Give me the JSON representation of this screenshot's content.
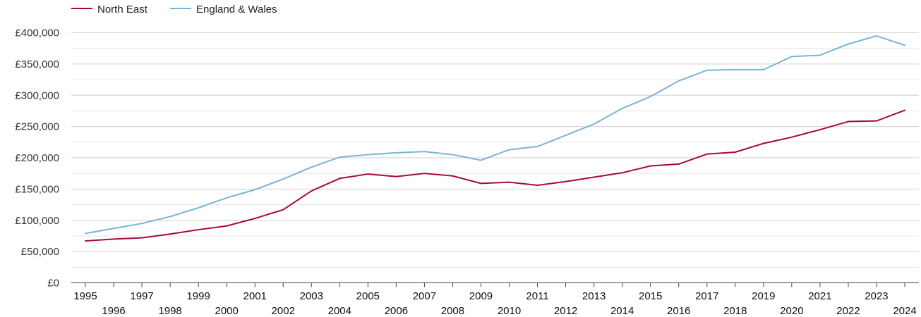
{
  "chart_data": {
    "type": "line",
    "title": "",
    "xlabel": "",
    "ylabel": "",
    "x": [
      1995,
      1996,
      1997,
      1998,
      1999,
      2000,
      2001,
      2002,
      2003,
      2004,
      2005,
      2006,
      2007,
      2008,
      2009,
      2010,
      2011,
      2012,
      2013,
      2014,
      2015,
      2016,
      2017,
      2018,
      2019,
      2020,
      2021,
      2022,
      2023,
      2024
    ],
    "x_tick_labels": [
      "1995",
      "1996",
      "1997",
      "1998",
      "1999",
      "2000",
      "2001",
      "2002",
      "2003",
      "2004",
      "2005",
      "2006",
      "2007",
      "2008",
      "2009",
      "2010",
      "2011",
      "2012",
      "2013",
      "2014",
      "2015",
      "2016",
      "2017",
      "2018",
      "2019",
      "2020",
      "2021",
      "2022",
      "2023",
      "2024"
    ],
    "ylim": [
      0,
      400000
    ],
    "y_ticks": [
      0,
      50000,
      100000,
      150000,
      200000,
      250000,
      300000,
      350000,
      400000
    ],
    "y_tick_labels": [
      "£0",
      "£50,000",
      "£100,000",
      "£150,000",
      "£200,000",
      "£250,000",
      "£300,000",
      "£350,000",
      "£400,000"
    ],
    "grid": true,
    "legend_position": "top-left",
    "series": [
      {
        "name": "North East",
        "color": "#a50a35",
        "values": [
          67000,
          70000,
          72000,
          78000,
          85000,
          91000,
          103000,
          117000,
          147000,
          167000,
          174000,
          170000,
          175000,
          171000,
          159000,
          161000,
          156000,
          162000,
          169000,
          176000,
          187000,
          190000,
          206000,
          209000,
          223000,
          233000,
          245000,
          258000,
          259000,
          276000
        ]
      },
      {
        "name": "England & Wales",
        "color": "#7bb3d6",
        "values": [
          79000,
          87000,
          95000,
          106000,
          120000,
          136000,
          149000,
          166000,
          185000,
          201000,
          205000,
          208000,
          210000,
          205000,
          196000,
          213000,
          218000,
          236000,
          254000,
          279000,
          298000,
          323000,
          340000,
          341000,
          341000,
          362000,
          364000,
          382000,
          395000,
          380000
        ]
      }
    ]
  }
}
